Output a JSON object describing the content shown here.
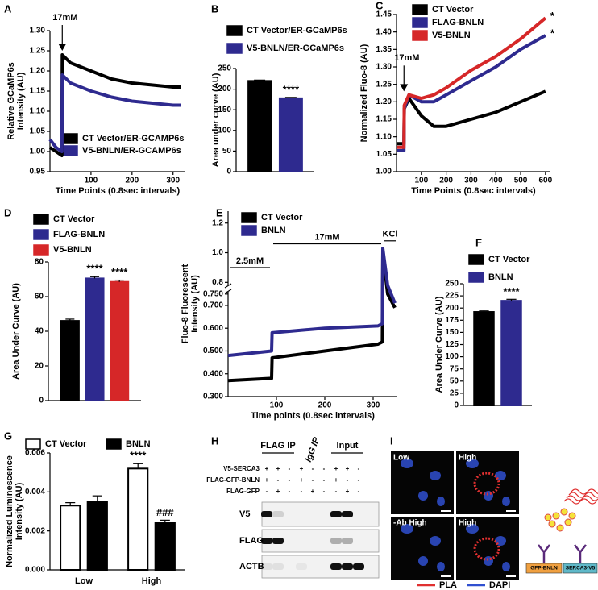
{
  "chart_data": [
    {
      "type": "line",
      "panel": "A",
      "ytitle": [
        "Relative GCaMP6s",
        "Intensity (AU)"
      ],
      "xtitle": "Time Points (0.8sec intervals)",
      "xlim": [
        0,
        330
      ],
      "xticks": [
        100,
        200,
        300
      ],
      "ylim": [
        0.95,
        1.3
      ],
      "yticks": [
        0.95,
        {
          "value": 1,
          "label": "1.00"
        },
        1.05,
        {
          "value": 1.1,
          "label": "1.10"
        },
        1.15,
        {
          "value": 1.2,
          "label": "1.20"
        },
        1.25,
        {
          "value": 1.3,
          "label": "1.30"
        }
      ],
      "x": [
        0,
        15,
        29,
        30,
        50,
        100,
        150,
        200,
        250,
        300,
        320
      ],
      "series": [
        {
          "name": "CT Vector/ER-GCAMP6s",
          "color": "#000000",
          "values": [
            1.01,
            1.0,
            0.99,
            1.24,
            1.22,
            1.2,
            1.18,
            1.17,
            1.165,
            1.16,
            1.16
          ]
        },
        {
          "name": "V5-BNLN/ER-GCAMP6s",
          "color": "#2e2a8f",
          "values": [
            1.03,
            1.01,
            1.0,
            1.19,
            1.17,
            1.15,
            1.135,
            1.125,
            1.12,
            1.115,
            1.115
          ]
        }
      ],
      "annotations": [
        {
          "text": "17mM",
          "x": 30,
          "y": 1.25
        }
      ]
    },
    {
      "type": "bar",
      "panel": "B",
      "ytitle": [
        "Area under curve (AU)"
      ],
      "ylim": [
        0,
        250
      ],
      "yticks": [
        0,
        50,
        100,
        150,
        200,
        250
      ],
      "categories": [
        null
      ],
      "series": [
        {
          "name": "CT Vector/ER-GCaMP6s",
          "color": "#000000",
          "values": [
            220
          ],
          "errors": [
            2
          ]
        },
        {
          "name": "V5-BNLN/ER-GCaMP6s",
          "color": "#2e2a8f",
          "values": [
            178
          ],
          "errors": [
            2
          ],
          "stars": [
            "****"
          ]
        }
      ]
    },
    {
      "type": "line",
      "panel": "C",
      "ytitle": [
        "Normalized Fluo-8 (AU)"
      ],
      "xtitle": "Time Points (0.8sec intervals)",
      "xlim": [
        0,
        620
      ],
      "xticks": [
        100,
        200,
        300,
        400,
        500,
        600
      ],
      "ylim": [
        1,
        1.45
      ],
      "yticks": [
        {
          "value": 1,
          "label": "1.00"
        },
        1.05,
        {
          "value": 1.1,
          "label": "1.10"
        },
        1.15,
        {
          "value": 1.2,
          "label": "1.20"
        },
        1.25,
        {
          "value": 1.3,
          "label": "1.30"
        },
        1.35,
        {
          "value": 1.4,
          "label": "1.40"
        },
        1.45
      ],
      "x": [
        0,
        30,
        31,
        50,
        100,
        150,
        200,
        300,
        400,
        500,
        600
      ],
      "series": [
        {
          "name": "CT Vector",
          "color": "#000000",
          "values": [
            1.08,
            1.08,
            1.18,
            1.21,
            1.16,
            1.13,
            1.13,
            1.15,
            1.17,
            1.2,
            1.23
          ]
        },
        {
          "name": "FLAG-BNLN",
          "color": "#2e2a8f",
          "values": [
            1.06,
            1.06,
            1.18,
            1.22,
            1.2,
            1.2,
            1.22,
            1.26,
            1.3,
            1.35,
            1.39
          ],
          "end_label": "*"
        },
        {
          "name": "V5-BNLN",
          "color": "#d62728",
          "values": [
            1.07,
            1.07,
            1.19,
            1.22,
            1.21,
            1.22,
            1.24,
            1.29,
            1.33,
            1.38,
            1.44
          ],
          "end_label": "*"
        }
      ],
      "annotations": [
        {
          "text": "17mM",
          "x": 30,
          "y": 1.23
        }
      ]
    },
    {
      "type": "bar",
      "panel": "D",
      "ytitle": [
        "Area Under Curve (AU)"
      ],
      "ylim": [
        0,
        80
      ],
      "yticks": [
        0,
        20,
        40,
        60,
        80
      ],
      "categories": [
        null
      ],
      "series": [
        {
          "name": "CT Vector",
          "color": "#000000",
          "values": [
            46
          ],
          "errors": [
            1
          ]
        },
        {
          "name": "FLAG-BNLN",
          "color": "#2e2a8f",
          "values": [
            70.5
          ],
          "errors": [
            1
          ],
          "stars": [
            "****"
          ]
        },
        {
          "name": "V5-BNLN",
          "color": "#d62728",
          "values": [
            68.5
          ],
          "errors": [
            1
          ],
          "stars": [
            "****"
          ]
        }
      ]
    },
    {
      "type": "line",
      "panel": "E",
      "ytitle": [
        "Fluo-8 Fluorescent",
        "Intensity (AU)"
      ],
      "xtitle": "Time points (0.8sec intervals)",
      "xlim": [
        0,
        350
      ],
      "xticks": [
        100,
        200,
        300
      ],
      "ylim": [
        0.3,
        0.76
      ],
      "ylim_upper": [
        0.78,
        1.28
      ],
      "yticks": [
        {
          "value": 0.3,
          "label": "0.300"
        },
        {
          "value": 0.4,
          "label": "0.400"
        },
        {
          "value": 0.5,
          "label": "0.500"
        },
        {
          "value": 0.6,
          "label": "0.600"
        },
        {
          "value": 0.7,
          "label": "0.700"
        },
        {
          "value": 0.75,
          "label": "0.750"
        },
        0.8,
        {
          "value": 1,
          "label": "1.0"
        },
        1.2
      ],
      "x": [
        0,
        90,
        91,
        200,
        310,
        319,
        320,
        330,
        345
      ],
      "series": [
        {
          "name": "CT Vector",
          "color": "#000000",
          "values": [
            0.37,
            0.38,
            0.47,
            0.5,
            0.53,
            0.54,
            1.0,
            0.75,
            0.69
          ]
        },
        {
          "name": "BNLN",
          "color": "#2e2a8f",
          "values": [
            0.48,
            0.5,
            0.58,
            0.6,
            0.61,
            0.62,
            1.03,
            0.78,
            0.71
          ]
        }
      ],
      "brackets": [
        {
          "text": "2.5mM",
          "x": [
            0,
            90
          ],
          "y": 0.9
        },
        {
          "text": "17mM",
          "x": [
            90,
            320
          ],
          "y": 1.06
        },
        {
          "text": "KCl",
          "x": [
            320,
            350
          ],
          "y": 1.08
        }
      ]
    },
    {
      "type": "bar",
      "panel": "F",
      "ytitle": [
        "Area Under Curve (AU)"
      ],
      "ylim": [
        0,
        250
      ],
      "yticks": [
        0,
        25,
        50,
        75,
        100,
        125,
        150,
        175,
        200,
        225,
        250
      ],
      "categories": [
        null
      ],
      "series": [
        {
          "name": "CT Vector",
          "color": "#000000",
          "values": [
            192
          ],
          "errors": [
            3
          ]
        },
        {
          "name": "BNLN",
          "color": "#2e2a8f",
          "values": [
            215
          ],
          "errors": [
            3
          ],
          "stars": [
            "****"
          ]
        }
      ]
    },
    {
      "type": "bar",
      "panel": "G",
      "ytitle": [
        "Normalized Luminescence",
        "Intensity (AU)"
      ],
      "ylim": [
        0,
        0.006
      ],
      "yticks": [
        {
          "value": 0,
          "label": "0.000"
        },
        {
          "value": 0.002,
          "label": "0.002"
        },
        {
          "value": 0.004,
          "label": "0.004"
        },
        {
          "value": 0.006,
          "label": "0.006"
        }
      ],
      "categories": [
        "Low",
        "High"
      ],
      "edge": "#000000",
      "series": [
        {
          "name": "CT Vector",
          "color": "#ffffff",
          "values": [
            0.0033,
            0.0052
          ],
          "errors": [
            0.00015,
            0.00025
          ],
          "stars": [
            null,
            "****"
          ]
        },
        {
          "name": "BNLN",
          "color": "#000000",
          "values": [
            0.0035,
            0.0024
          ],
          "errors": [
            0.0003,
            0.00015
          ],
          "stars": [
            null,
            "###"
          ]
        }
      ]
    }
  ],
  "blot": {
    "panel": "H",
    "groups": [
      "FLAG IP",
      "IgG IP",
      "Input"
    ],
    "conditions": [
      {
        "name": "V5-SERCA3",
        "lanes": [
          "+",
          "+",
          "-",
          "+",
          "-",
          "-",
          "+",
          "+",
          "-"
        ]
      },
      {
        "name": "FLAG-GFP-BNLN",
        "lanes": [
          "+",
          "-",
          "-",
          "+",
          "-",
          "-",
          "+",
          "-",
          "-"
        ]
      },
      {
        "name": "FLAG-GFP",
        "lanes": [
          "-",
          "+",
          "-",
          "-",
          "+",
          "-",
          "-",
          "+",
          "-"
        ]
      }
    ],
    "probes": [
      "V5",
      "FLAG",
      "ACTB"
    ]
  },
  "micrograph": {
    "panel": "I",
    "tiles": [
      "Low",
      "High",
      "-Ab High",
      "High"
    ],
    "legend": [
      {
        "name": "PLA",
        "color": "#e03030"
      },
      {
        "name": "DAPI",
        "color": "#3050d0"
      }
    ],
    "diagram": [
      "GFP-BNLN",
      "SERCA3-V5"
    ]
  }
}
